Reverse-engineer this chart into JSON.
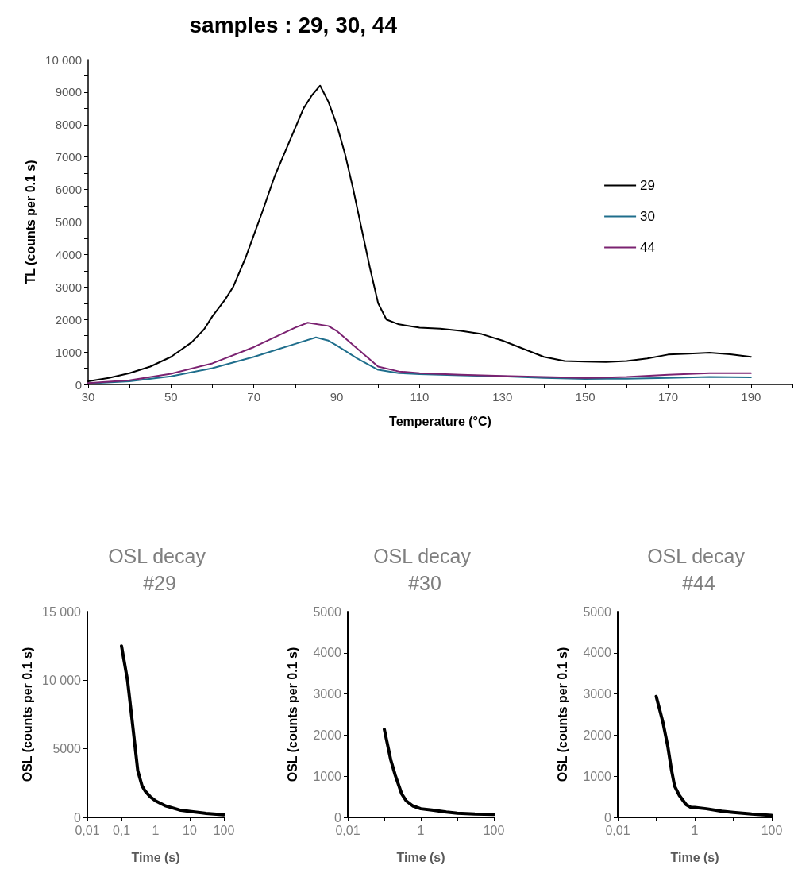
{
  "chart_data": [
    {
      "type": "line",
      "title": "samples : 29, 30, 44",
      "xlabel": "Temperature (°C)",
      "ylabel": "TL (counts per 0.1 s)",
      "xlim": [
        30,
        200
      ],
      "xticks": [
        30,
        {
          "value": 40,
          "label": null
        },
        50,
        {
          "value": 60,
          "label": null
        },
        70,
        {
          "value": 80,
          "label": null
        },
        90,
        {
          "value": 100,
          "label": null
        },
        110,
        {
          "value": 120,
          "label": null
        },
        130,
        {
          "value": 140,
          "label": null
        },
        150,
        {
          "value": 160,
          "label": null
        },
        170,
        {
          "value": 180,
          "label": null
        },
        190,
        {
          "value": 200,
          "label": null
        }
      ],
      "ylim": [
        0,
        10000
      ],
      "yticks": [
        0,
        {
          "value": 500,
          "label": null
        },
        1000,
        {
          "value": 1500,
          "label": null
        },
        2000,
        {
          "value": 2500,
          "label": null
        },
        3000,
        {
          "value": 3500,
          "label": null
        },
        4000,
        {
          "value": 4500,
          "label": null
        },
        5000,
        {
          "value": 5500,
          "label": null
        },
        6000,
        {
          "value": 6500,
          "label": null
        },
        7000,
        {
          "value": 7500,
          "label": null
        },
        8000,
        {
          "value": 8500,
          "label": null
        },
        9000,
        {
          "value": 9500,
          "label": null
        },
        {
          "value": 10000,
          "label": "10 000"
        }
      ],
      "x": [
        30,
        35,
        40,
        45,
        50,
        55,
        58,
        60,
        63,
        65,
        68,
        70,
        72,
        75,
        77,
        80,
        82,
        84,
        86,
        88,
        90,
        92,
        94,
        96,
        98,
        100,
        102,
        105,
        110,
        115,
        120,
        125,
        130,
        135,
        140,
        145,
        150,
        155,
        160,
        165,
        170,
        175,
        180,
        185,
        190
      ],
      "series": [
        {
          "name": "29",
          "color": "#000000",
          "values": [
            100,
            200,
            350,
            550,
            850,
            1300,
            1700,
            2100,
            2600,
            3000,
            3900,
            4600,
            5300,
            6400,
            7000,
            7900,
            8500,
            8900,
            9200,
            8700,
            8000,
            7100,
            6000,
            4800,
            3600,
            2500,
            2000,
            1850,
            1750,
            1720,
            1650,
            1550,
            1350,
            1100,
            850,
            720,
            700,
            690,
            720,
            800,
            920,
            950,
            980,
            930,
            850
          ]
        },
        {
          "name": "30",
          "color": "#1f6e8c",
          "x": [
            30,
            40,
            50,
            60,
            70,
            75,
            80,
            85,
            88,
            90,
            95,
            100,
            105,
            110,
            120,
            130,
            140,
            150,
            160,
            170,
            180,
            190
          ],
          "values": [
            30,
            100,
            250,
            500,
            850,
            1050,
            1250,
            1450,
            1350,
            1200,
            800,
            450,
            350,
            320,
            280,
            250,
            200,
            170,
            180,
            200,
            230,
            220
          ]
        },
        {
          "name": "44",
          "color": "#7b2271",
          "x": [
            30,
            40,
            50,
            60,
            70,
            75,
            80,
            83,
            88,
            90,
            95,
            100,
            105,
            110,
            120,
            130,
            140,
            150,
            160,
            170,
            180,
            190
          ],
          "values": [
            40,
            130,
            330,
            650,
            1150,
            1450,
            1750,
            1900,
            1800,
            1650,
            1100,
            550,
            400,
            350,
            300,
            260,
            230,
            200,
            230,
            300,
            350,
            350
          ]
        }
      ],
      "legend": "right",
      "grid": false,
      "marker": "none",
      "line_style": "solid"
    },
    {
      "type": "line",
      "title": "OSL decay #29",
      "xlabel": "Time (s)",
      "ylabel": "OSL (counts per 0.1 s)",
      "log": "x",
      "xlim": [
        0.01,
        100
      ],
      "xticks": [
        {
          "value": 0.01,
          "label": "0,01"
        },
        {
          "value": 0.1,
          "label": "0,1"
        },
        1,
        10,
        100
      ],
      "ylim": [
        0,
        15000
      ],
      "yticks": [
        0,
        5000,
        {
          "value": 10000,
          "label": "10 000"
        },
        {
          "value": 15000,
          "label": "15 000"
        }
      ],
      "x": [
        0.1,
        0.15,
        0.2,
        0.3,
        0.4,
        0.5,
        0.7,
        1,
        2,
        5,
        10,
        30,
        100
      ],
      "series": [
        {
          "color": "#000000",
          "values": [
            12500,
            10000,
            7300,
            3400,
            2300,
            1900,
            1500,
            1200,
            830,
            540,
            440,
            290,
            190
          ]
        }
      ],
      "grid": false,
      "marker": "none",
      "line_style": "solid"
    },
    {
      "type": "line",
      "title": "OSL decay #30",
      "xlabel": "Time (s)",
      "ylabel": "OSL (counts per 0.1 s)",
      "log": "x",
      "xlim": [
        0.01,
        100
      ],
      "xticks": [
        {
          "value": 0.01,
          "label": "0,01"
        },
        {
          "value": 0.1,
          "label": null
        },
        1,
        {
          "value": 10,
          "label": null
        },
        100
      ],
      "ylim": [
        0,
        5000
      ],
      "yticks": [
        0,
        1000,
        2000,
        3000,
        4000,
        5000
      ],
      "x": [
        0.1,
        0.15,
        0.2,
        0.3,
        0.4,
        0.6,
        1,
        2,
        5,
        10,
        30,
        100
      ],
      "series": [
        {
          "color": "#000000",
          "values": [
            2140,
            1400,
            1020,
            570,
            400,
            280,
            210,
            180,
            130,
            100,
            80,
            70
          ]
        }
      ],
      "grid": false,
      "marker": "none",
      "line_style": "solid"
    },
    {
      "type": "line",
      "title": "OSL decay #44",
      "xlabel": "Time (s)",
      "ylabel": "OSL (counts per 0.1 s)",
      "log": "x",
      "xlim": [
        0.01,
        100
      ],
      "xticks": [
        {
          "value": 0.01,
          "label": "0,01"
        },
        {
          "value": 0.1,
          "label": null
        },
        1,
        {
          "value": 10,
          "label": null
        },
        100
      ],
      "ylim": [
        0,
        5000
      ],
      "yticks": [
        0,
        1000,
        2000,
        3000,
        4000,
        5000
      ],
      "x": [
        0.1,
        0.15,
        0.2,
        0.25,
        0.3,
        0.4,
        0.6,
        0.8,
        1,
        2,
        5,
        10,
        30,
        100
      ],
      "series": [
        {
          "color": "#000000",
          "values": [
            2940,
            2300,
            1720,
            1140,
            760,
            530,
            310,
            240,
            240,
            210,
            150,
            120,
            80,
            50
          ]
        }
      ],
      "grid": false,
      "marker": "none",
      "line_style": "solid"
    }
  ]
}
